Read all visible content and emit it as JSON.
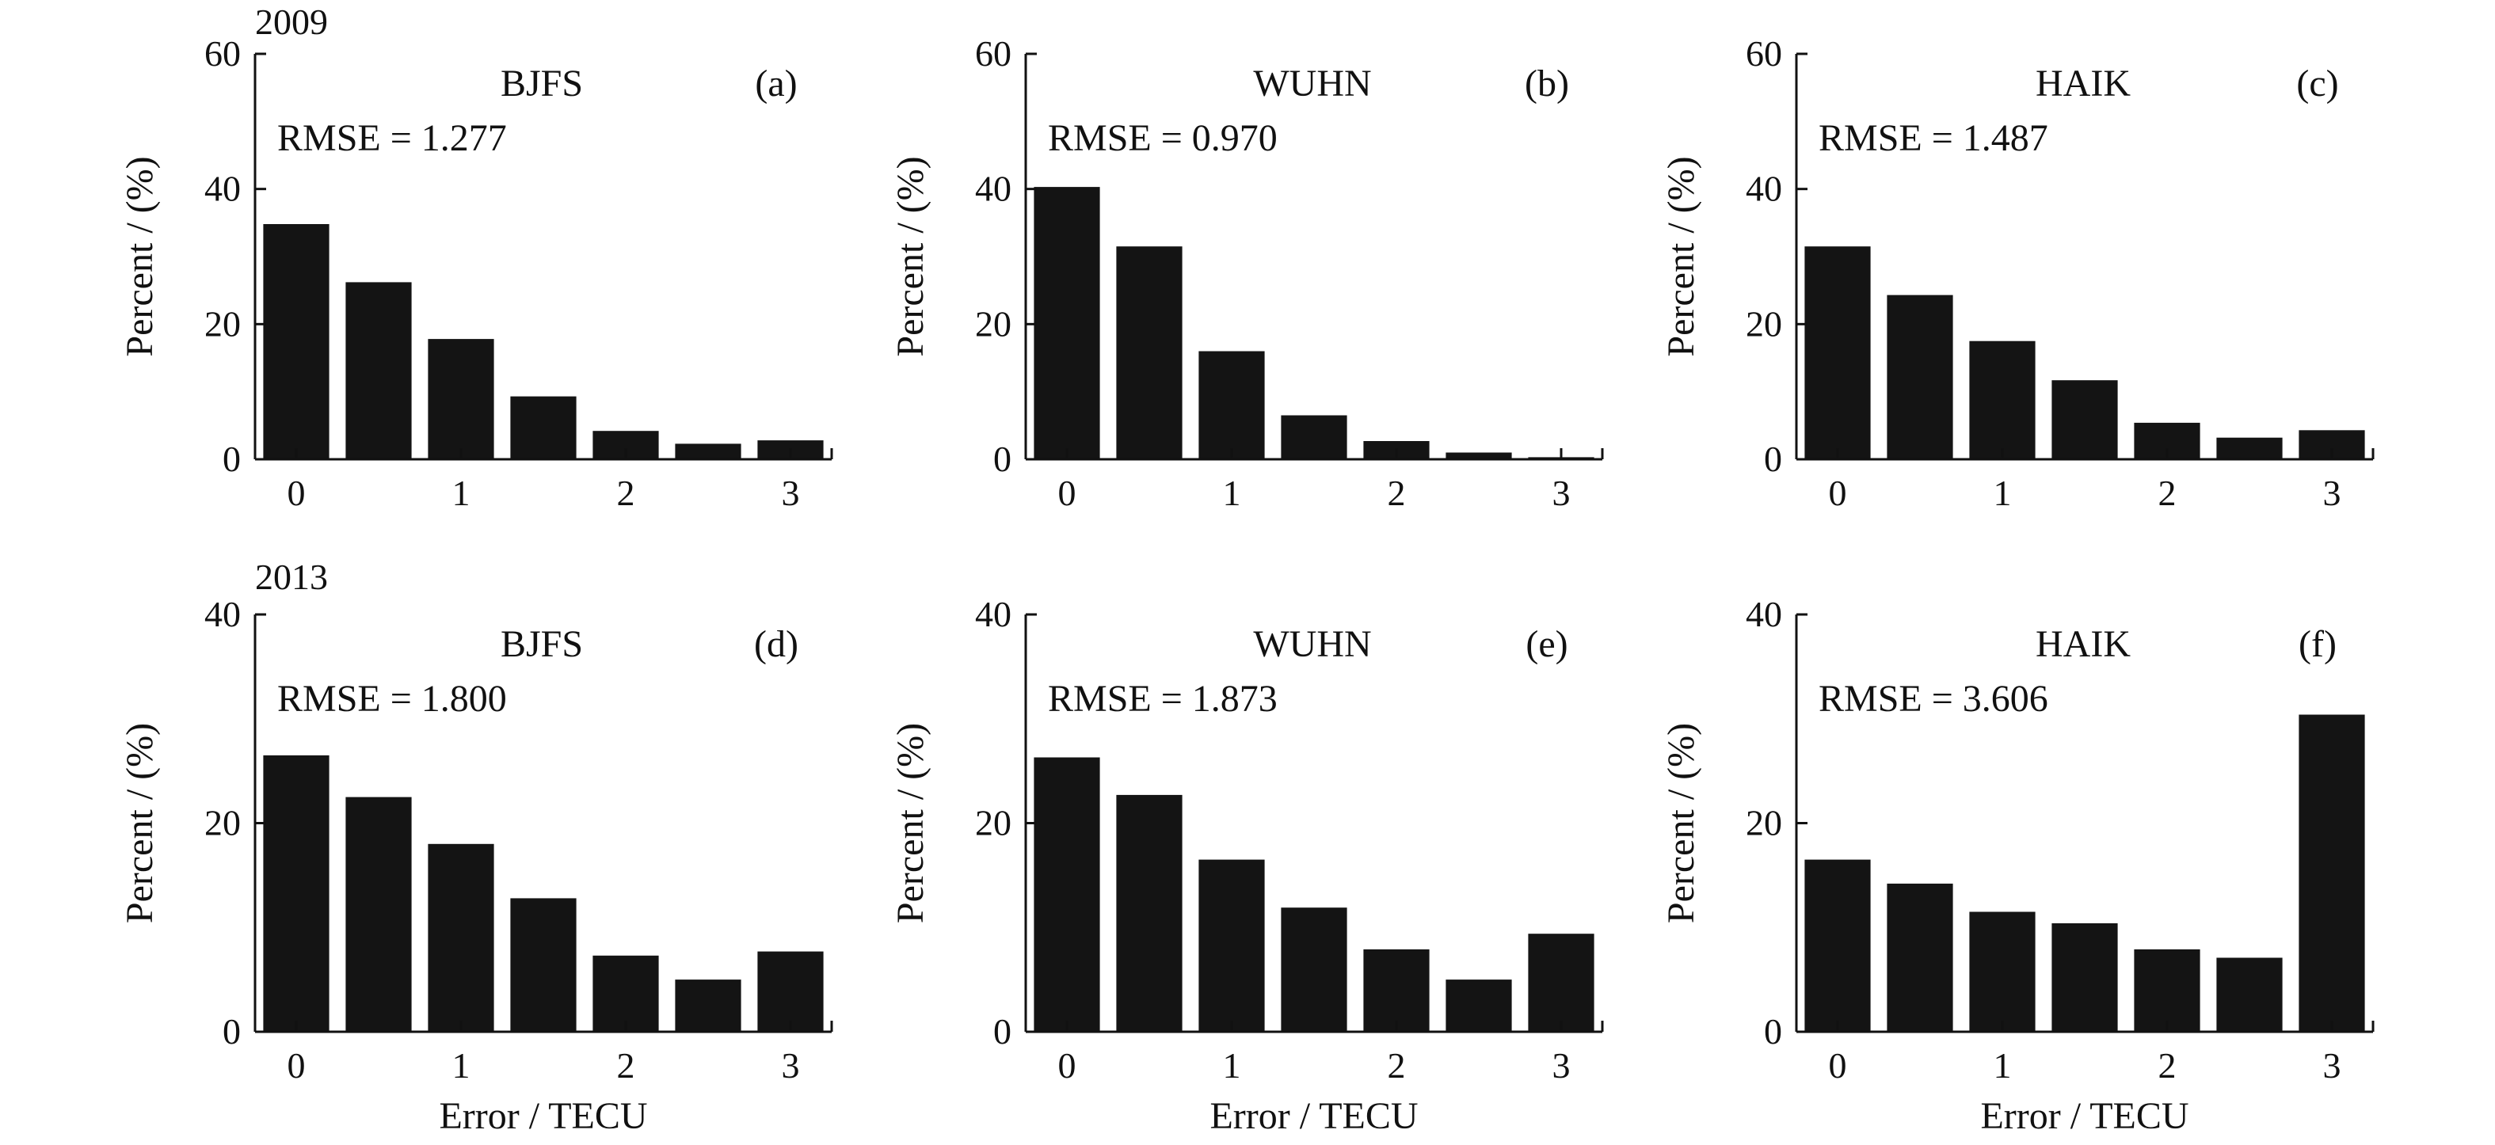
{
  "figure": {
    "colors": {
      "bar": "#141414",
      "axis": "#111111",
      "text": "#111111",
      "background": "#ffffff"
    },
    "row_labels": [
      "2009",
      "2013"
    ],
    "xlabel": "Error / TECU"
  },
  "chart_data": [
    {
      "type": "bar",
      "year": "2009",
      "station": "BJFS",
      "panel": "(a)",
      "rmse": "RMSE = 1.277",
      "ylabel": "Percent / (%)",
      "xlabel": "",
      "ylim": [
        0,
        60
      ],
      "yticks": [
        0,
        20,
        40,
        60
      ],
      "xlim": [
        -0.25,
        3.25
      ],
      "xticks": [
        0,
        1,
        2,
        3
      ],
      "x": [
        0,
        0.5,
        1,
        1.5,
        2,
        2.5,
        3
      ],
      "bar_width": 0.4,
      "values": [
        34.8,
        26.2,
        17.8,
        9.3,
        4.2,
        2.3,
        2.8
      ],
      "grid": false,
      "legend": "none"
    },
    {
      "type": "bar",
      "year": "2009",
      "station": "WUHN",
      "panel": "(b)",
      "rmse": "RMSE = 0.970",
      "ylabel": "Percent / (%)",
      "xlabel": "",
      "ylim": [
        0,
        60
      ],
      "yticks": [
        0,
        20,
        40,
        60
      ],
      "xlim": [
        -0.25,
        3.25
      ],
      "xticks": [
        0,
        1,
        2,
        3
      ],
      "x": [
        0,
        0.5,
        1,
        1.5,
        2,
        2.5,
        3
      ],
      "bar_width": 0.4,
      "values": [
        40.3,
        31.5,
        16.0,
        6.5,
        2.7,
        1.0,
        0.3
      ],
      "grid": false,
      "legend": "none"
    },
    {
      "type": "bar",
      "year": "2009",
      "station": "HAIK",
      "panel": "(c)",
      "rmse": "RMSE = 1.487",
      "ylabel": "Percent / (%)",
      "xlabel": "",
      "ylim": [
        0,
        60
      ],
      "yticks": [
        0,
        20,
        40,
        60
      ],
      "xlim": [
        -0.25,
        3.25
      ],
      "xticks": [
        0,
        1,
        2,
        3
      ],
      "x": [
        0,
        0.5,
        1,
        1.5,
        2,
        2.5,
        3
      ],
      "bar_width": 0.4,
      "values": [
        31.5,
        24.3,
        17.5,
        11.7,
        5.4,
        3.2,
        4.3
      ],
      "grid": false,
      "legend": "none"
    },
    {
      "type": "bar",
      "year": "2013",
      "station": "BJFS",
      "panel": "(d)",
      "rmse": "RMSE = 1.800",
      "ylabel": "Percent / (%)",
      "xlabel": "Error / TECU",
      "ylim": [
        0,
        40
      ],
      "yticks": [
        0,
        20,
        40
      ],
      "xlim": [
        -0.25,
        3.25
      ],
      "xticks": [
        0,
        1,
        2,
        3
      ],
      "x": [
        0,
        0.5,
        1,
        1.5,
        2,
        2.5,
        3
      ],
      "bar_width": 0.4,
      "values": [
        26.5,
        22.5,
        18.0,
        12.8,
        7.3,
        5.0,
        7.7
      ],
      "grid": false,
      "legend": "none"
    },
    {
      "type": "bar",
      "year": "2013",
      "station": "WUHN",
      "panel": "(e)",
      "rmse": "RMSE = 1.873",
      "ylabel": "Percent / (%)",
      "xlabel": "Error / TECU",
      "ylim": [
        0,
        40
      ],
      "yticks": [
        0,
        20,
        40
      ],
      "xlim": [
        -0.25,
        3.25
      ],
      "xticks": [
        0,
        1,
        2,
        3
      ],
      "x": [
        0,
        0.5,
        1,
        1.5,
        2,
        2.5,
        3
      ],
      "bar_width": 0.4,
      "values": [
        26.3,
        22.7,
        16.5,
        11.9,
        7.9,
        5.0,
        9.4
      ],
      "grid": false,
      "legend": "none"
    },
    {
      "type": "bar",
      "year": "2013",
      "station": "HAIK",
      "panel": "(f)",
      "rmse": "RMSE = 3.606",
      "ylabel": "Percent / (%)",
      "xlabel": "Error / TECU",
      "ylim": [
        0,
        40
      ],
      "yticks": [
        0,
        20,
        40
      ],
      "xlim": [
        -0.25,
        3.25
      ],
      "xticks": [
        0,
        1,
        2,
        3
      ],
      "x": [
        0,
        0.5,
        1,
        1.5,
        2,
        2.5,
        3
      ],
      "bar_width": 0.4,
      "values": [
        16.5,
        14.2,
        11.5,
        10.4,
        7.9,
        7.1,
        30.4
      ],
      "grid": false,
      "legend": "none"
    }
  ]
}
